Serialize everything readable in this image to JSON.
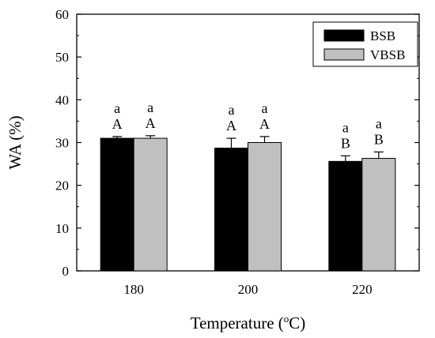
{
  "chart_data": {
    "type": "bar",
    "xlabel": "Temperature (",
    "xlabel_sup": "o",
    "xlabel_tail": "C)",
    "ylabel": "WA (%)",
    "ylim": [
      0,
      60
    ],
    "yticks": [
      0,
      10,
      20,
      30,
      40,
      50,
      60
    ],
    "categories": [
      "180",
      "200",
      "220"
    ],
    "series": [
      {
        "name": "BSB",
        "color": "#000000",
        "values": [
          31.0,
          28.7,
          25.6
        ],
        "errors": [
          0.4,
          2.3,
          1.3
        ],
        "upper_labels": [
          "a",
          "a",
          "a"
        ],
        "lower_labels": [
          "A",
          "A",
          "B"
        ]
      },
      {
        "name": "VBSB",
        "color": "#c0c0c0",
        "values": [
          31.0,
          30.0,
          26.3
        ],
        "errors": [
          0.6,
          1.4,
          1.5
        ],
        "upper_labels": [
          "a",
          "a",
          "a"
        ],
        "lower_labels": [
          "A",
          "A",
          "B"
        ]
      }
    ],
    "legend_position": "top-right",
    "grid": false
  }
}
